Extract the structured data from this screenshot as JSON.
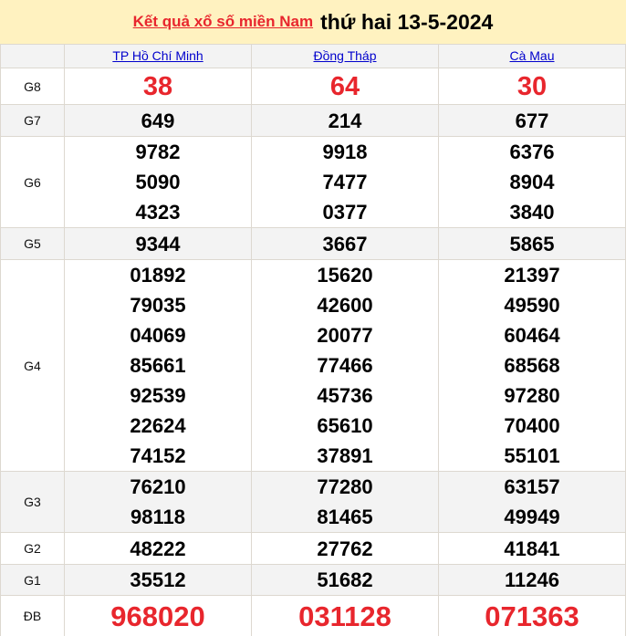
{
  "header": {
    "link": "Kết quả xổ số miền Nam",
    "date": "thứ hai 13-5-2024"
  },
  "provinces": [
    "TP Hồ Chí Minh",
    "Đồng Tháp",
    "Cà Mau"
  ],
  "colors": {
    "accent_red": "#e8262d",
    "link_blue": "#0000cc",
    "title_bg": "#fff2c0"
  },
  "prizes": [
    {
      "label": "G8",
      "style": "r",
      "values": [
        [
          "38"
        ],
        [
          "64"
        ],
        [
          "30"
        ]
      ]
    },
    {
      "label": "G7",
      "style": "n",
      "values": [
        [
          "649"
        ],
        [
          "214"
        ],
        [
          "677"
        ]
      ]
    },
    {
      "label": "G6",
      "style": "n",
      "values": [
        [
          "9782",
          "5090",
          "4323"
        ],
        [
          "9918",
          "7477",
          "0377"
        ],
        [
          "6376",
          "8904",
          "3840"
        ]
      ]
    },
    {
      "label": "G5",
      "style": "n",
      "values": [
        [
          "9344"
        ],
        [
          "3667"
        ],
        [
          "5865"
        ]
      ]
    },
    {
      "label": "G4",
      "style": "n",
      "values": [
        [
          "01892",
          "79035",
          "04069",
          "85661",
          "92539",
          "22624",
          "74152"
        ],
        [
          "15620",
          "42600",
          "20077",
          "77466",
          "45736",
          "65610",
          "37891"
        ],
        [
          "21397",
          "49590",
          "60464",
          "68568",
          "97280",
          "70400",
          "55101"
        ]
      ]
    },
    {
      "label": "G3",
      "style": "n",
      "values": [
        [
          "76210",
          "98118"
        ],
        [
          "77280",
          "81465"
        ],
        [
          "63157",
          "49949"
        ]
      ]
    },
    {
      "label": "G2",
      "style": "n",
      "values": [
        [
          "48222"
        ],
        [
          "27762"
        ],
        [
          "41841"
        ]
      ]
    },
    {
      "label": "G1",
      "style": "n",
      "values": [
        [
          "35512"
        ],
        [
          "51682"
        ],
        [
          "11246"
        ]
      ]
    },
    {
      "label": "ĐB",
      "style": "db",
      "values": [
        [
          "968020"
        ],
        [
          "031128"
        ],
        [
          "071363"
        ]
      ]
    }
  ]
}
